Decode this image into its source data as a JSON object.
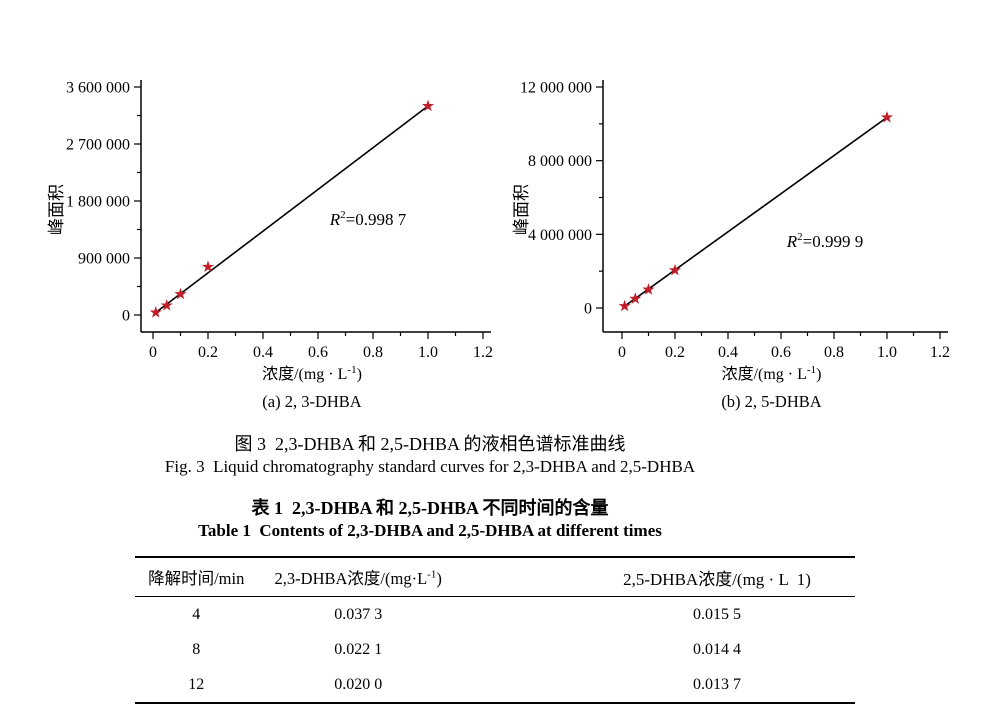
{
  "figure_captions": {
    "zh": "图 3  2,3-DHBA 和 2,5-DHBA 的液相色谱标准曲线",
    "en": "Fig. 3  Liquid chromatography standard curves for 2,3-DHBA and 2,5-DHBA"
  },
  "chart_data": [
    {
      "type": "scatter",
      "subcaption": "(a) 2, 3-DHBA",
      "xlabel": "浓度/(mg · L⁻¹)",
      "ylabel": "峰面积",
      "annotation": "R²=0.998 7",
      "x": [
        0.01,
        0.05,
        0.1,
        0.2,
        1.0
      ],
      "y": [
        40000,
        150000,
        330000,
        760000,
        3300000
      ],
      "xlim": [
        0,
        1.2
      ],
      "ylim": [
        0,
        3600000
      ],
      "x_ticks": [
        0,
        0.2,
        0.4,
        0.6,
        0.8,
        1.0,
        1.2
      ],
      "x_tick_labels": [
        "0",
        "0.2",
        "0.4",
        "0.6",
        "0.8",
        "1.0",
        "1.2"
      ],
      "x_minor_step": 0.1,
      "y_ticks": [
        0,
        900000,
        1800000,
        2700000,
        3600000
      ],
      "y_tick_labels": [
        "0",
        "900 000",
        "1 800 000",
        "2 700 000",
        "3 600 000"
      ],
      "fit_line": true,
      "legend": "none",
      "grid": false,
      "marker": "star",
      "marker_color": "#c01f2a",
      "line_color": "#000000"
    },
    {
      "type": "scatter",
      "subcaption": "(b) 2, 5-DHBA",
      "xlabel": "浓度/(mg · L⁻¹)",
      "ylabel": "峰面积",
      "annotation": "R²=0.999 9",
      "x": [
        0.01,
        0.05,
        0.1,
        0.2,
        1.0
      ],
      "y": [
        100000,
        500000,
        1000000,
        2050000,
        10350000
      ],
      "xlim": [
        0,
        1.2
      ],
      "ylim": [
        0,
        12000000
      ],
      "x_ticks": [
        0,
        0.2,
        0.4,
        0.6,
        0.8,
        1.0,
        1.2
      ],
      "x_tick_labels": [
        "0",
        "0.2",
        "0.4",
        "0.6",
        "0.8",
        "1.0",
        "1.2"
      ],
      "x_minor_step": 0.1,
      "y_ticks": [
        0,
        4000000,
        8000000,
        12000000
      ],
      "y_tick_labels": [
        "0",
        "4 000 000",
        "8 000 000",
        "12 000 000"
      ],
      "fit_line": true,
      "legend": "none",
      "grid": false,
      "marker": "star",
      "marker_color": "#c01f2a",
      "line_color": "#000000"
    }
  ],
  "table": {
    "caption_zh": "表 1  2,3-DHBA 和 2,5-DHBA 不同时间的含量",
    "caption_en": "Table 1  Contents of 2,3-DHBA and 2,5-DHBA at different times",
    "columns": [
      {
        "label": "降解时间/min"
      },
      {
        "label_prefix": "2,3-DHBA浓度/(mg·L",
        "label_sup": "-1",
        "label_suffix": ")"
      },
      {
        "label": "2,5-DHBA浓度/(mg · L  1)"
      }
    ],
    "rows": [
      [
        "4",
        "0.037 3",
        "0.015 5"
      ],
      [
        "8",
        "0.022 1",
        "0.014 4"
      ],
      [
        "12",
        "0.020 0",
        "0.013 7"
      ]
    ]
  },
  "colors": {
    "marker_red": "#c01f2a",
    "axis_black": "#000000",
    "background": "#ffffff"
  }
}
